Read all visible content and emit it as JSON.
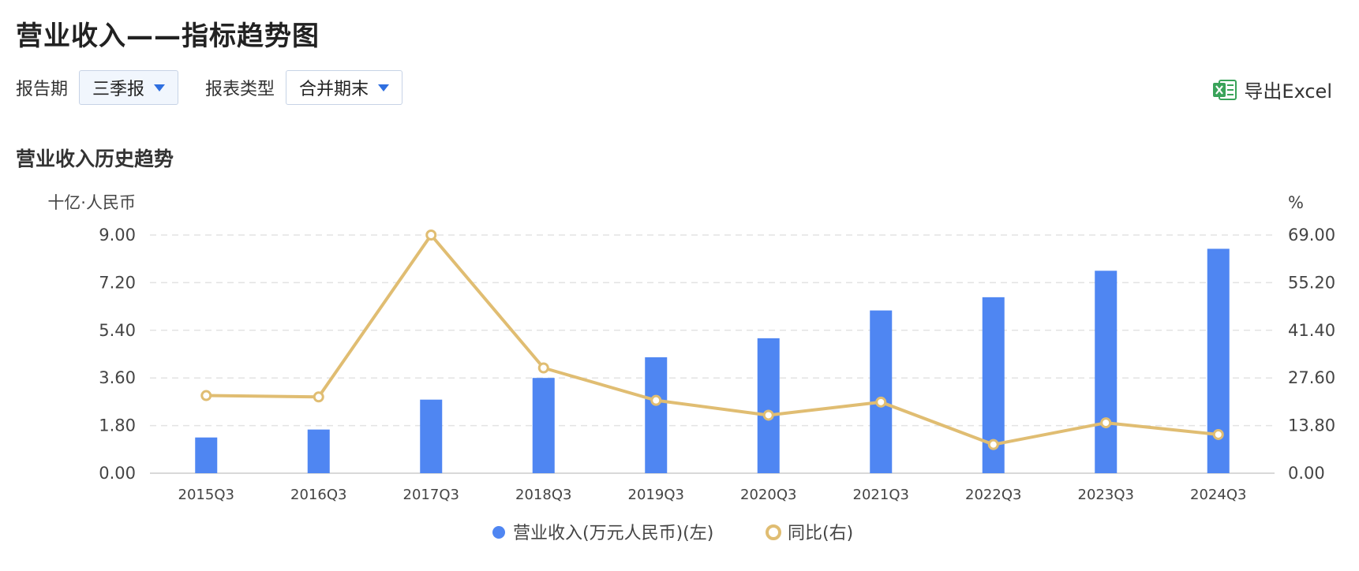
{
  "page": {
    "title": "营业收入——指标趋势图",
    "section_title": "营业收入历史趋势"
  },
  "filters": {
    "period_label": "报告期",
    "period_value": "三季报",
    "type_label": "报表类型",
    "type_value": "合并期末"
  },
  "export": {
    "label": "导出Excel",
    "icon": "excel-icon"
  },
  "colors": {
    "bar": "#4f86f2",
    "line": "#e0bd72",
    "caret": "#2f6fe0",
    "grid": "#e3e3e3",
    "excel": "#3aa35a"
  },
  "chart_data": {
    "type": "bar+line",
    "left_unit": "十亿·人民币",
    "right_unit": "%",
    "categories": [
      "2015Q3",
      "2016Q3",
      "2017Q3",
      "2018Q3",
      "2019Q3",
      "2020Q3",
      "2021Q3",
      "2022Q3",
      "2023Q3",
      "2024Q3"
    ],
    "left_ticks": [
      "0.00",
      "1.80",
      "3.60",
      "5.40",
      "7.20",
      "9.00"
    ],
    "right_ticks": [
      "0.00",
      "13.80",
      "27.60",
      "41.40",
      "55.20",
      "69.00"
    ],
    "ylim_left": [
      0,
      9
    ],
    "ylim_right": [
      0,
      69
    ],
    "grid": true,
    "legend_position": "bottom-center",
    "series": [
      {
        "name": "营业收入(万元人民币)(左)",
        "type": "bar",
        "axis": "left",
        "values": [
          1.35,
          1.65,
          2.78,
          3.6,
          4.38,
          5.1,
          6.15,
          6.65,
          7.65,
          8.48
        ]
      },
      {
        "name": "同比(右)",
        "type": "line",
        "axis": "right",
        "values": [
          22.5,
          22.1,
          69.0,
          30.5,
          21.1,
          16.8,
          20.6,
          8.3,
          14.6,
          11.2
        ]
      }
    ]
  }
}
